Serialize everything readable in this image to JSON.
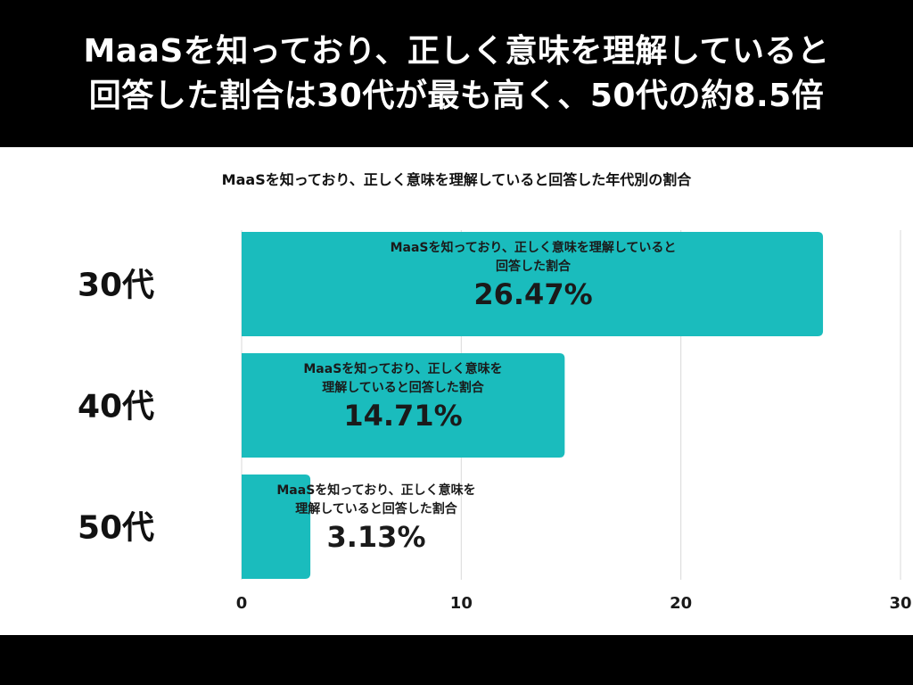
{
  "header": {
    "line1": "MaaSを知っており、正しく意味を理解していると",
    "line2": "回答した割合は30代が最も高く、50代の約8.5倍"
  },
  "colors": {
    "bar": "#1ABCBD",
    "header_bg": "#000000",
    "grid": "#D9D9D9"
  },
  "chart_data": {
    "type": "bar",
    "orientation": "horizontal",
    "title": "MaaSを知っており、正しく意味を理解していると回答した年代別の割合",
    "categories": [
      "30代",
      "40代",
      "50代"
    ],
    "values": [
      26.47,
      14.71,
      3.13
    ],
    "value_labels": [
      "26.47%",
      "14.71%",
      "3.13%"
    ],
    "bar_descriptions": [
      [
        "MaaSを知っており、正しく意味を理解していると",
        "回答した割合"
      ],
      [
        "MaaSを知っており、正しく意味を",
        "理解していると回答した割合"
      ],
      [
        "MaaSを知っており、正しく意味を",
        "理解していると回答した割合"
      ]
    ],
    "xlim": [
      0,
      30
    ],
    "xticks": [
      0,
      10,
      20,
      30
    ],
    "grid": true,
    "legend": "none"
  }
}
